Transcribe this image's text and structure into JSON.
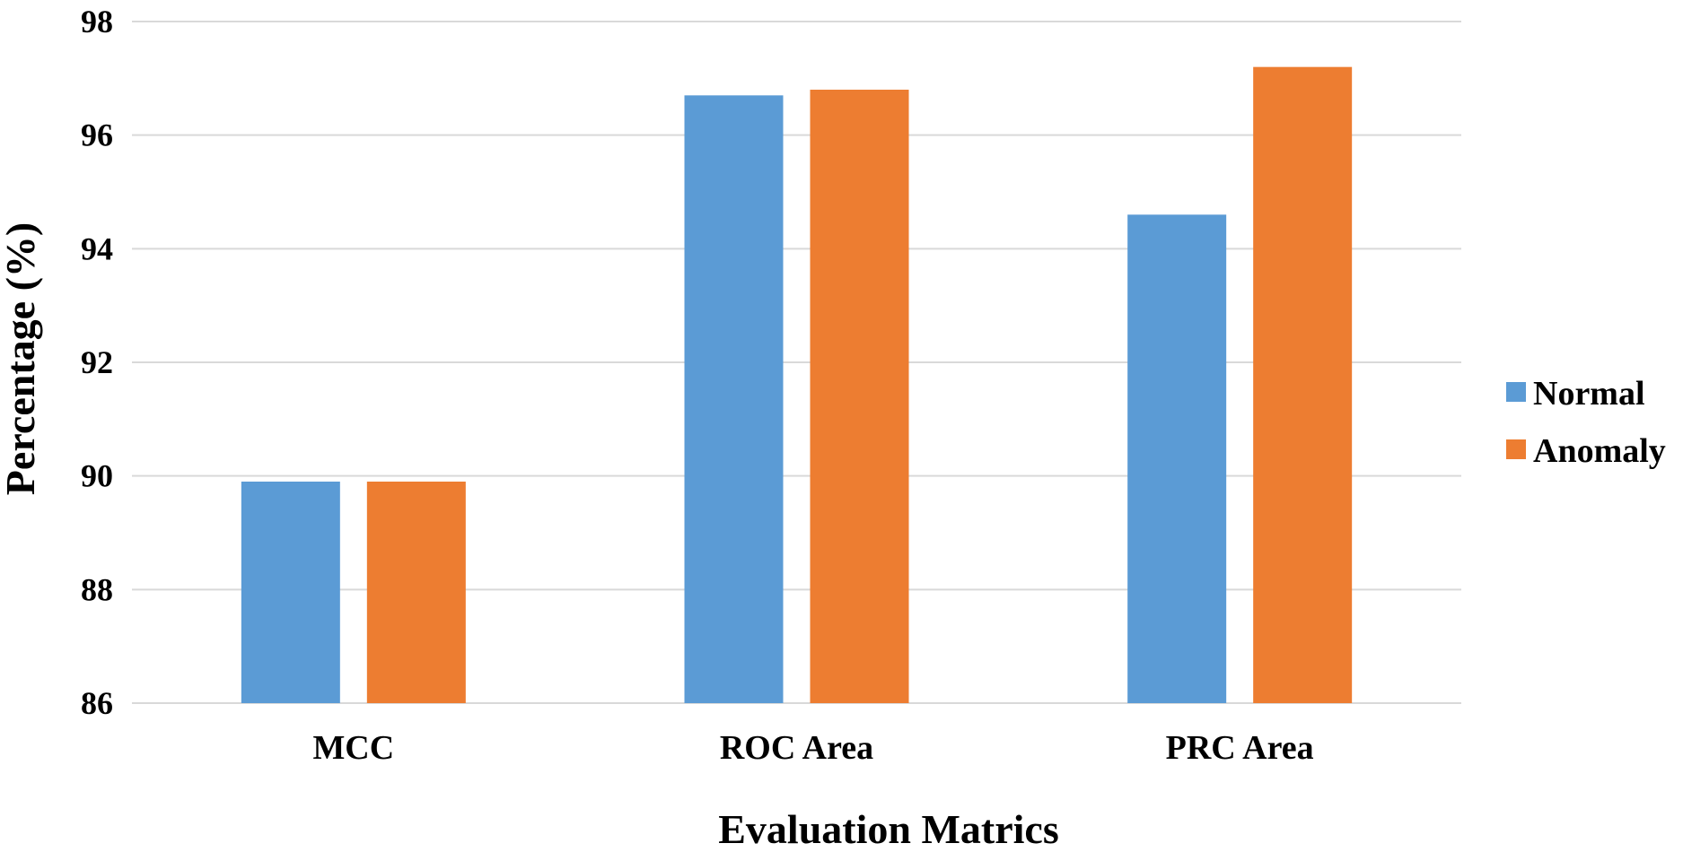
{
  "chart_data": {
    "type": "bar",
    "title": "",
    "xlabel": "Evaluation Matrics",
    "ylabel": "Percentage (%)",
    "categories": [
      "MCC",
      "ROC Area",
      "PRC Area"
    ],
    "series": [
      {
        "name": "Normal",
        "color": "#5b9bd5",
        "values": [
          89.9,
          96.7,
          94.6
        ]
      },
      {
        "name": "Anomaly",
        "color": "#ed7d31",
        "values": [
          89.9,
          96.8,
          97.2
        ]
      }
    ],
    "ylim": [
      86,
      98
    ],
    "yticks": [
      86,
      88,
      90,
      92,
      94,
      96,
      98
    ],
    "grid": true,
    "legend_position": "right"
  }
}
